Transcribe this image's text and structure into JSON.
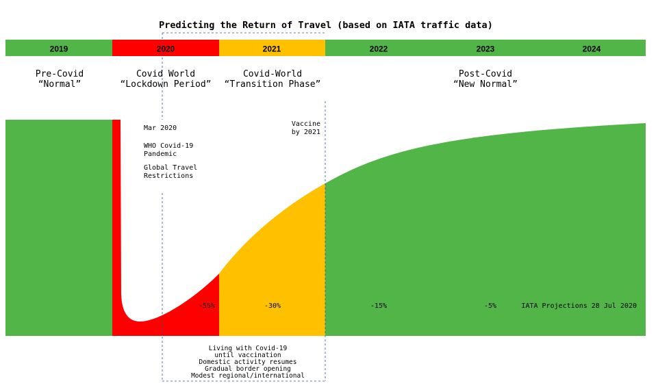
{
  "title": "Predicting the Return of Travel (based on IATA traffic data)",
  "colors": {
    "normal": "#51b548",
    "lockdown": "#ff0000",
    "transition": "#ffc000",
    "background": "#ffffff",
    "guide": "#2f5597"
  },
  "years": [
    "2019",
    "2020",
    "2021",
    "2022",
    "2023",
    "2024"
  ],
  "phases": [
    {
      "line1": "Pre-Covid",
      "line2": "“Normal”"
    },
    {
      "line1": "Covid World",
      "line2": "“Lockdown Period”"
    },
    {
      "line1": "Covid-World",
      "line2": "“Transition Phase”"
    },
    {
      "line1": "Post-Covid",
      "line2": "“New Normal”"
    }
  ],
  "annotations": {
    "mar_2020": "Mar 2020",
    "who_1": "WHO Covid-19",
    "who_2": "Pandemic",
    "travel_1": "Global Travel",
    "travel_2": "Restrictions",
    "vaccine_1": "Vaccine",
    "vaccine_2": "by 2021",
    "source": "IATA Projections 28 Jul 2020"
  },
  "living": [
    "Living with Covid-19",
    "until vaccination",
    "Domestic activity resumes",
    "Gradual border opening",
    "Modest regional/international"
  ],
  "chart_data": {
    "type": "area",
    "categories": [
      "2020",
      "2021",
      "2022",
      "2023"
    ],
    "values": [
      -55,
      -30,
      -15,
      -5
    ],
    "value_labels": [
      "-55%",
      "-30%",
      "-15%",
      "-5%"
    ],
    "xlabel": "",
    "ylabel": ""
  }
}
